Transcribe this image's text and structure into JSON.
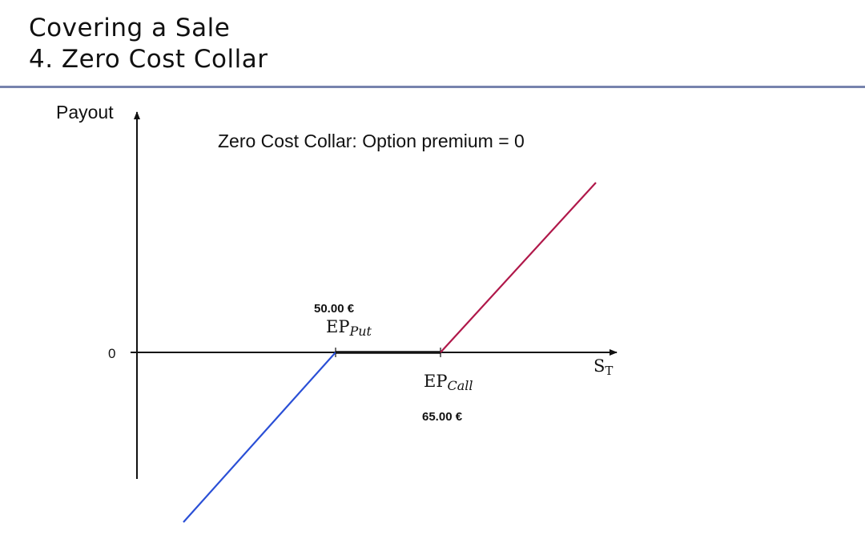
{
  "header": {
    "line1": "Covering a Sale",
    "line2": "4. Zero Cost Collar"
  },
  "diagram": {
    "y_axis_label": "Payout",
    "x_axis_label_main": "S",
    "x_axis_label_sub": "T",
    "zero_label": "0",
    "caption": "Zero Cost Collar: Option premium = 0",
    "put": {
      "value_label": "50.00 €",
      "label_main": "EP",
      "label_sub": "Put"
    },
    "call": {
      "value_label": "65.00 €",
      "label_main": "EP",
      "label_sub": "Call"
    },
    "colors": {
      "axis": "#111111",
      "loss_segment": "#2a4fd6",
      "flat_segment": "#111111",
      "gain_segment": "#b0184a",
      "divider": "#7783ad"
    }
  }
}
